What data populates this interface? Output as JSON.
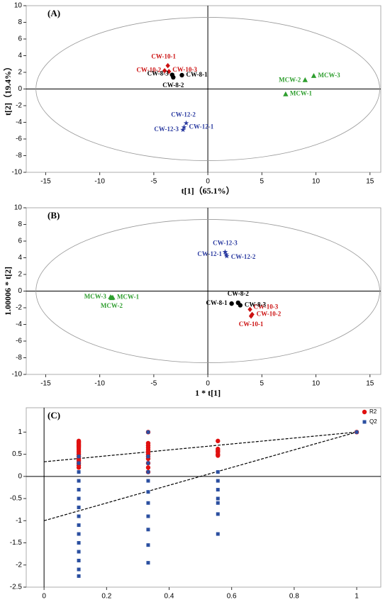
{
  "chart_data": [
    {
      "type": "scatter",
      "annotation": "(A)",
      "xlabel": "t[1]（65.1%）",
      "ylabel": "t[2]（19.4%）",
      "xlim": [
        -16.8,
        16
      ],
      "ylim": [
        -10,
        10
      ],
      "xticks": [
        -15,
        -10,
        -5,
        0,
        5,
        10,
        15
      ],
      "yticks": [
        -10,
        -8,
        -6,
        -4,
        -2,
        0,
        2,
        4,
        6,
        8,
        10
      ],
      "ellipse": {
        "rx": 15.9,
        "ry": 8.6
      },
      "series": [
        {
          "color": "#cc1111",
          "marker": "diamond",
          "x": [
            -3.7,
            -4.0,
            -3.6
          ],
          "y": [
            2.8,
            2.2,
            2.1
          ],
          "labels": [
            "CW-10-1",
            "CW-10-2",
            "CW-10-3"
          ]
        },
        {
          "color": "#000000",
          "marker": "circle",
          "x": [
            -2.4,
            -3.2,
            -3.3
          ],
          "y": [
            1.66,
            1.4,
            1.7
          ],
          "labels": [
            "CW-8-1",
            "CW-8-2",
            "CW-8-3"
          ]
        },
        {
          "color": "#2e9e2e",
          "marker": "triangle",
          "x": [
            7.2,
            9.0,
            9.8
          ],
          "y": [
            -0.6,
            1.1,
            1.6
          ],
          "labels": [
            "MCW-1",
            "MCW-2",
            "MCW-3"
          ]
        },
        {
          "color": "#2a3aa0",
          "marker": "star",
          "x": [
            -2.2,
            -2.0,
            -2.3
          ],
          "y": [
            -4.6,
            -4.1,
            -4.9
          ],
          "labels": [
            "CW-12-1",
            "CW-12-2",
            "CW-12-3"
          ]
        }
      ]
    },
    {
      "type": "scatter",
      "annotation": "(B)",
      "xlabel": "1 * t[1]",
      "ylabel": "1.00006 * t[2]",
      "xlim": [
        -16.8,
        16
      ],
      "ylim": [
        -10,
        10
      ],
      "xticks": [
        -15,
        -10,
        -5,
        0,
        5,
        10,
        15
      ],
      "yticks": [
        -10,
        -8,
        -6,
        -4,
        -2,
        0,
        2,
        4,
        6,
        8,
        10
      ],
      "ellipse": {
        "rx": 15.9,
        "ry": 8.6
      },
      "series": [
        {
          "color": "#cc1111",
          "marker": "diamond",
          "x": [
            4.0,
            4.1,
            3.9
          ],
          "y": [
            -3.0,
            -2.8,
            -2.2
          ],
          "labels": [
            "CW-10-1",
            "CW-10-2",
            "CW-10-3"
          ]
        },
        {
          "color": "#000000",
          "marker": "circle",
          "x": [
            2.2,
            2.8,
            3.0
          ],
          "y": [
            -1.5,
            -1.4,
            -1.7
          ],
          "labels": [
            "CW-8-1",
            "CW-8-2",
            "CW-8-3"
          ]
        },
        {
          "color": "#2e9e2e",
          "marker": "triangle",
          "x": [
            -8.8,
            -8.9,
            -9.0
          ],
          "y": [
            -0.75,
            -0.8,
            -0.7
          ],
          "labels": [
            "MCW-1",
            "MCW-2",
            "MCW-3"
          ]
        },
        {
          "color": "#2a3aa0",
          "marker": "star",
          "x": [
            1.7,
            1.75,
            1.6
          ],
          "y": [
            4.4,
            4.2,
            4.7
          ],
          "labels": [
            "CW-12-1",
            "CW-12-2",
            "CW-12-3"
          ]
        }
      ]
    },
    {
      "type": "permutation",
      "annotation": "(C)",
      "xlim": [
        -0.057,
        1.077
      ],
      "ylim": [
        -2.5,
        1.55
      ],
      "xticks": [
        0,
        0.2,
        0.4,
        0.6,
        0.8,
        1
      ],
      "yticks": [
        -2.5,
        -2,
        -1.5,
        -1,
        -0.5,
        0,
        0.5,
        1
      ],
      "series": [
        {
          "name": "R2",
          "color": "#e01010",
          "marker": "circle",
          "x": [
            0.111,
            0.111,
            0.111,
            0.111,
            0.111,
            0.111,
            0.111,
            0.111,
            0.111,
            0.111,
            0.111,
            0.111,
            0.111,
            0.111,
            0.111,
            0.111,
            0.333,
            0.333,
            0.333,
            0.333,
            0.333,
            0.333,
            0.333,
            0.333,
            0.333,
            0.333,
            0.333,
            0.333,
            0.556,
            0.556,
            0.556,
            0.556,
            0.556,
            0.556,
            1
          ],
          "y": [
            0.8,
            0.78,
            0.75,
            0.72,
            0.7,
            0.67,
            0.64,
            0.6,
            0.55,
            0.5,
            0.45,
            0.4,
            0.35,
            0.3,
            0.25,
            0.2,
            1,
            0.75,
            0.7,
            0.65,
            0.6,
            0.55,
            0.5,
            0.45,
            0.4,
            0.3,
            0.2,
            0.1,
            0.8,
            0.62,
            0.58,
            0.55,
            0.5,
            0.47,
            1
          ],
          "line": {
            "x": [
              0,
              1
            ],
            "y": [
              0.33,
              1
            ]
          }
        },
        {
          "name": "Q2",
          "color": "#2b4fa0",
          "marker": "square",
          "x": [
            0.111,
            0.111,
            0.111,
            0.111,
            0.111,
            0.111,
            0.111,
            0.111,
            0.111,
            0.111,
            0.111,
            0.111,
            0.111,
            0.111,
            0.111,
            0.333,
            0.333,
            0.333,
            0.333,
            0.333,
            0.333,
            0.333,
            0.333,
            0.333,
            0.333,
            0.333,
            0.556,
            0.556,
            0.556,
            0.556,
            0.556,
            0.556,
            0.556,
            1
          ],
          "y": [
            0.45,
            0.3,
            0.1,
            -0.1,
            -0.3,
            -0.5,
            -0.7,
            -0.9,
            -1.1,
            -1.3,
            -1.5,
            -1.7,
            -1.9,
            -2.1,
            -2.25,
            1,
            0.45,
            0.3,
            0.1,
            -0.1,
            -0.35,
            -0.6,
            -0.9,
            -1.2,
            -1.55,
            -1.95,
            0.1,
            -0.1,
            -0.3,
            -0.5,
            -0.6,
            -0.85,
            -1.3,
            1
          ],
          "line": {
            "x": [
              0,
              1
            ],
            "y": [
              -1,
              1
            ]
          }
        }
      ]
    }
  ]
}
